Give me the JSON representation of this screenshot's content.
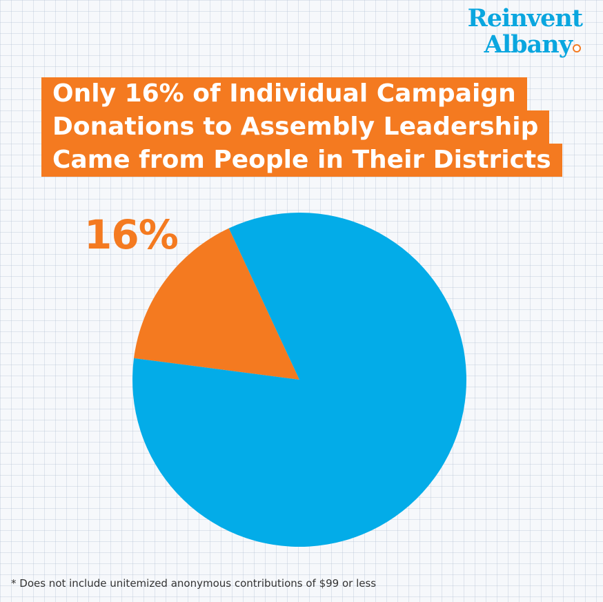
{
  "logo": {
    "line1": "Reinvent",
    "line2": "Albany"
  },
  "title_lines": [
    "Only 16% of Individual Campaign",
    "Donations to Assembly Leadership",
    "Came from People in Their Districts"
  ],
  "highlight_label": "16%",
  "footnote": "* Does not include unitemized anonymous contributions of $99 or less",
  "colors": {
    "accent": "#f47a20",
    "brand_blue": "#0aa6df",
    "pie_blue": "#03ace8",
    "pie_orange": "#f47a20"
  },
  "chart_data": {
    "type": "pie",
    "title": "Only 16% of Individual Campaign Donations to Assembly Leadership Came from People in Their Districts",
    "slices": [
      {
        "value": 16,
        "color": "#f47a20"
      },
      {
        "value": 84,
        "color": "#03ace8"
      }
    ]
  }
}
